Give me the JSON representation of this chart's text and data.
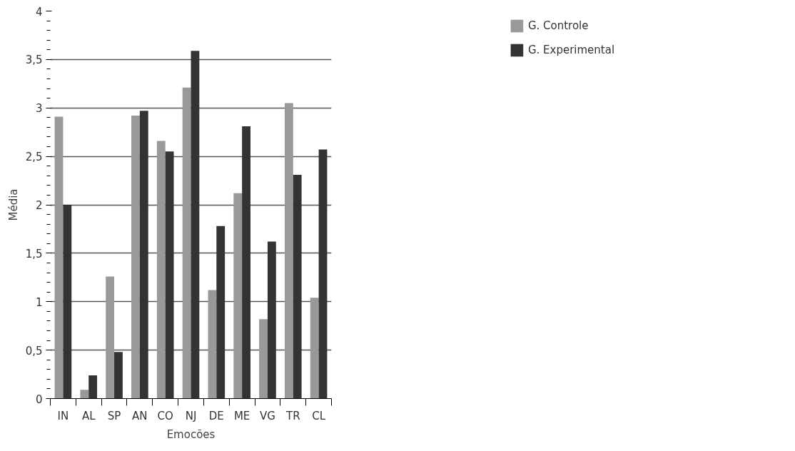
{
  "chart_data": {
    "type": "bar",
    "xlabel": "Emocões",
    "ylabel": "Média",
    "categories": [
      "IN",
      "AL",
      "SP",
      "AN",
      "CO",
      "NJ",
      "DE",
      "ME",
      "VG",
      "TR",
      "CL"
    ],
    "series": [
      {
        "name": "G. Controle",
        "color": "#999999",
        "values": [
          2.91,
          0.09,
          1.26,
          2.92,
          2.66,
          3.21,
          1.12,
          2.12,
          0.82,
          3.05,
          1.04
        ]
      },
      {
        "name": "G. Experimental",
        "color": "#333333",
        "values": [
          2.0,
          0.24,
          0.48,
          2.97,
          2.55,
          3.59,
          1.78,
          2.81,
          1.62,
          2.31,
          2.57
        ]
      }
    ],
    "ylim": [
      0,
      4
    ],
    "yticks": [
      {
        "value": 0,
        "label": "0"
      },
      {
        "value": 0.5,
        "label": "0,5"
      },
      {
        "value": 1,
        "label": "1"
      },
      {
        "value": 1.5,
        "label": "1,5"
      },
      {
        "value": 2,
        "label": "2"
      },
      {
        "value": 2.5,
        "label": "2,5"
      },
      {
        "value": 3,
        "label": "3"
      },
      {
        "value": 3.5,
        "label": "3,5"
      },
      {
        "value": 4,
        "label": "4"
      }
    ],
    "grid": "y",
    "legend": "top right"
  }
}
